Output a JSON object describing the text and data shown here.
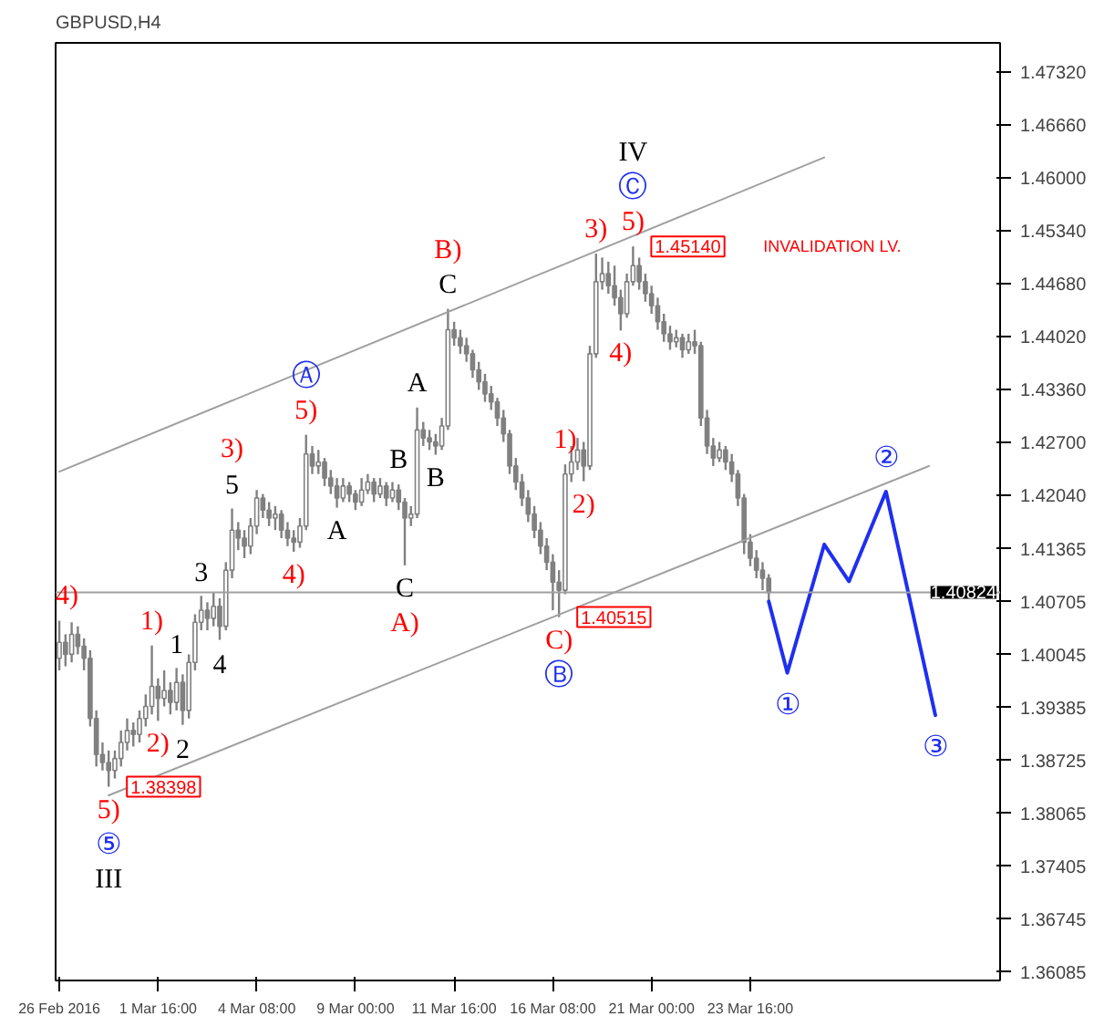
{
  "chart_data": {
    "type": "candlestick",
    "title": "GBPUSD,H4",
    "color": "#808080",
    "categories": [
      "26 Feb 2016",
      null,
      null,
      null,
      null,
      null,
      null,
      null,
      null,
      null,
      null,
      null,
      null,
      null,
      null,
      null,
      "1 Mar 16:00",
      null,
      null,
      null,
      null,
      null,
      null,
      null,
      null,
      null,
      null,
      null,
      null,
      null,
      null,
      null,
      "4 Mar 08:00",
      null,
      null,
      null,
      null,
      null,
      null,
      null,
      null,
      null,
      null,
      null,
      null,
      null,
      null,
      null,
      "9 Mar 00:00",
      null,
      null,
      null,
      null,
      null,
      null,
      null,
      null,
      null,
      null,
      null,
      null,
      null,
      null,
      null,
      "11 Mar 16:00",
      null,
      null,
      null,
      null,
      null,
      null,
      null,
      null,
      null,
      null,
      null,
      null,
      null,
      null,
      null,
      "16 Mar 08:00",
      null,
      null,
      null,
      null,
      null,
      null,
      null,
      null,
      null,
      null,
      null,
      null,
      null,
      null,
      null,
      "21 Mar 00:00",
      null,
      null,
      null,
      null,
      null,
      null,
      null,
      null,
      null,
      null,
      null,
      null,
      null,
      null,
      null,
      "23 Mar 16:00",
      null,
      null,
      null,
      null,
      null,
      null,
      null,
      null,
      null,
      null,
      null,
      null,
      null,
      null,
      null,
      null,
      null,
      null,
      null,
      null,
      null,
      null,
      null,
      null,
      null,
      null,
      null,
      null,
      null,
      null,
      null,
      null,
      null,
      null,
      null,
      null,
      null,
      null,
      null,
      null
    ],
    "ohlc": [
      [
        1.4,
        1.4047,
        1.3985,
        1.402
      ],
      [
        1.402,
        1.403,
        1.399,
        1.4005
      ],
      [
        1.4005,
        1.4045,
        1.3995,
        1.403
      ],
      [
        1.403,
        1.404,
        1.4005,
        1.4015
      ],
      [
        1.4015,
        1.4025,
        1.3985,
        1.4
      ],
      [
        1.4,
        1.401,
        1.3915,
        1.3925
      ],
      [
        1.3925,
        1.3935,
        1.3865,
        1.388
      ],
      [
        1.388,
        1.3895,
        1.386,
        1.387
      ],
      [
        1.387,
        1.3885,
        1.38398,
        1.386
      ],
      [
        1.386,
        1.3885,
        1.385,
        1.3875
      ],
      [
        1.3875,
        1.391,
        1.3865,
        1.3895
      ],
      [
        1.3895,
        1.3925,
        1.3885,
        1.391
      ],
      [
        1.391,
        1.392,
        1.389,
        1.3905
      ],
      [
        1.3905,
        1.3935,
        1.3895,
        1.3925
      ],
      [
        1.3925,
        1.3955,
        1.3915,
        1.394
      ],
      [
        1.394,
        1.4016,
        1.393,
        1.3965
      ],
      [
        1.3965,
        1.3975,
        1.3922,
        1.395
      ],
      [
        1.395,
        1.3985,
        1.394,
        1.396
      ],
      [
        1.396,
        1.397,
        1.393,
        1.3945
      ],
      [
        1.3945,
        1.3988,
        1.3935,
        1.397
      ],
      [
        1.397,
        1.398,
        1.3917,
        1.3935
      ],
      [
        1.3935,
        1.4005,
        1.3925,
        1.3995
      ],
      [
        1.3995,
        1.4055,
        1.3985,
        1.4045
      ],
      [
        1.4045,
        1.4078,
        1.4035,
        1.406
      ],
      [
        1.406,
        1.407,
        1.4035,
        1.405
      ],
      [
        1.405,
        1.4082,
        1.404,
        1.4065
      ],
      [
        1.4065,
        1.4075,
        1.4023,
        1.404
      ],
      [
        1.404,
        1.412,
        1.4035,
        1.411
      ],
      [
        1.411,
        1.4187,
        1.41,
        1.416
      ],
      [
        1.416,
        1.417,
        1.4135,
        1.415
      ],
      [
        1.415,
        1.416,
        1.4125,
        1.414
      ],
      [
        1.414,
        1.4175,
        1.413,
        1.4165
      ],
      [
        1.4165,
        1.421,
        1.4155,
        1.42
      ],
      [
        1.42,
        1.4205,
        1.4175,
        1.4185
      ],
      [
        1.4185,
        1.4195,
        1.4165,
        1.4175
      ],
      [
        1.4175,
        1.419,
        1.416,
        1.418
      ],
      [
        1.418,
        1.4185,
        1.415,
        1.416
      ],
      [
        1.416,
        1.417,
        1.414,
        1.415
      ],
      [
        1.415,
        1.416,
        1.4133,
        1.4145
      ],
      [
        1.4145,
        1.4175,
        1.4138,
        1.4165
      ],
      [
        1.4165,
        1.4279,
        1.416,
        1.4255
      ],
      [
        1.4255,
        1.4265,
        1.423,
        1.424
      ],
      [
        1.424,
        1.426,
        1.423,
        1.4245
      ],
      [
        1.4245,
        1.425,
        1.4215,
        1.4225
      ],
      [
        1.4225,
        1.4235,
        1.4205,
        1.4215
      ],
      [
        1.4215,
        1.4225,
        1.4188,
        1.42
      ],
      [
        1.42,
        1.4225,
        1.4195,
        1.4215
      ],
      [
        1.4215,
        1.422,
        1.4195,
        1.4205
      ],
      [
        1.4205,
        1.421,
        1.4185,
        1.4195
      ],
      [
        1.4195,
        1.4225,
        1.419,
        1.421
      ],
      [
        1.421,
        1.423,
        1.4205,
        1.422
      ],
      [
        1.422,
        1.4225,
        1.4195,
        1.4205
      ],
      [
        1.4205,
        1.4225,
        1.42,
        1.4215
      ],
      [
        1.4215,
        1.422,
        1.419,
        1.42
      ],
      [
        1.42,
        1.422,
        1.4195,
        1.421
      ],
      [
        1.421,
        1.4217,
        1.4185,
        1.4195
      ],
      [
        1.4195,
        1.42,
        1.4116,
        1.4175
      ],
      [
        1.4175,
        1.419,
        1.4165,
        1.418
      ],
      [
        1.418,
        1.4313,
        1.4175,
        1.4285
      ],
      [
        1.4285,
        1.4295,
        1.4265,
        1.4275
      ],
      [
        1.4275,
        1.4285,
        1.426,
        1.427
      ],
      [
        1.427,
        1.428,
        1.4254,
        1.4265
      ],
      [
        1.4265,
        1.43,
        1.426,
        1.429
      ],
      [
        1.429,
        1.4436,
        1.4285,
        1.441
      ],
      [
        1.441,
        1.442,
        1.439,
        1.44
      ],
      [
        1.44,
        1.441,
        1.438,
        1.439
      ],
      [
        1.439,
        1.44,
        1.437,
        1.438
      ],
      [
        1.438,
        1.4385,
        1.435,
        1.436
      ],
      [
        1.436,
        1.437,
        1.4335,
        1.4345
      ],
      [
        1.4345,
        1.4355,
        1.432,
        1.433
      ],
      [
        1.433,
        1.434,
        1.431,
        1.432
      ],
      [
        1.432,
        1.4325,
        1.429,
        1.43
      ],
      [
        1.43,
        1.431,
        1.427,
        1.428
      ],
      [
        1.428,
        1.4285,
        1.423,
        1.424
      ],
      [
        1.424,
        1.425,
        1.421,
        1.422
      ],
      [
        1.422,
        1.423,
        1.419,
        1.42
      ],
      [
        1.42,
        1.421,
        1.417,
        1.418
      ],
      [
        1.418,
        1.419,
        1.415,
        1.416
      ],
      [
        1.416,
        1.417,
        1.413,
        1.414
      ],
      [
        1.414,
        1.415,
        1.411,
        1.412
      ],
      [
        1.412,
        1.413,
        1.406,
        1.4095
      ],
      [
        1.4095,
        1.411,
        1.40515,
        1.4085
      ],
      [
        1.4085,
        1.4242,
        1.408,
        1.423
      ],
      [
        1.423,
        1.4265,
        1.422,
        1.4245
      ],
      [
        1.4245,
        1.4275,
        1.4235,
        1.426
      ],
      [
        1.426,
        1.427,
        1.4221,
        1.424
      ],
      [
        1.424,
        1.439,
        1.4235,
        1.438
      ],
      [
        1.438,
        1.4505,
        1.4375,
        1.447
      ],
      [
        1.447,
        1.45,
        1.446,
        1.448
      ],
      [
        1.448,
        1.4495,
        1.4455,
        1.4465
      ],
      [
        1.4465,
        1.449,
        1.444,
        1.445
      ],
      [
        1.445,
        1.446,
        1.4409,
        1.443
      ],
      [
        1.443,
        1.448,
        1.4425,
        1.447
      ],
      [
        1.447,
        1.4514,
        1.4465,
        1.449
      ],
      [
        1.449,
        1.45,
        1.446,
        1.447
      ],
      [
        1.447,
        1.448,
        1.4445,
        1.4455
      ],
      [
        1.4455,
        1.4465,
        1.443,
        1.444
      ],
      [
        1.444,
        1.445,
        1.441,
        1.442
      ],
      [
        1.442,
        1.443,
        1.4395,
        1.4405
      ],
      [
        1.4405,
        1.4415,
        1.4385,
        1.4395
      ],
      [
        1.4395,
        1.441,
        1.4388,
        1.44
      ],
      [
        1.44,
        1.4405,
        1.4375,
        1.4385
      ],
      [
        1.4385,
        1.4405,
        1.438,
        1.4395
      ],
      [
        1.4395,
        1.441,
        1.438,
        1.439
      ],
      [
        1.439,
        1.4395,
        1.429,
        1.43
      ],
      [
        1.43,
        1.431,
        1.4255,
        1.4265
      ],
      [
        1.4265,
        1.4275,
        1.424,
        1.425
      ],
      [
        1.425,
        1.427,
        1.4245,
        1.426
      ],
      [
        1.426,
        1.4265,
        1.4235,
        1.4245
      ],
      [
        1.4245,
        1.4255,
        1.422,
        1.423
      ],
      [
        1.423,
        1.4235,
        1.419,
        1.42
      ],
      [
        1.42,
        1.4205,
        1.413,
        1.4145
      ],
      [
        1.4145,
        1.4155,
        1.4115,
        1.4125
      ],
      [
        1.4125,
        1.4135,
        1.41,
        1.411
      ],
      [
        1.411,
        1.412,
        1.4085,
        1.41
      ],
      [
        1.41,
        1.4105,
        1.407,
        1.4082
      ],
      null,
      null,
      null,
      null,
      null,
      null,
      null,
      null,
      null,
      null,
      null,
      null,
      null,
      null,
      null,
      null,
      null,
      null,
      null,
      null,
      null,
      null,
      null,
      null,
      null,
      null,
      null,
      null,
      null,
      null,
      null,
      null,
      null,
      null,
      null,
      null,
      null
    ],
    "series": [
      {
        "type": "line",
        "color": "#a0a0a0",
        "values": [
          1.4233,
          null,
          null,
          null,
          null,
          null,
          null,
          null,
          null,
          null,
          null,
          null,
          null,
          null,
          null,
          null,
          null,
          null,
          null,
          null,
          null,
          null,
          null,
          null,
          null,
          null,
          null,
          null,
          null,
          null,
          null,
          null,
          null,
          null,
          null,
          null,
          null,
          null,
          null,
          null,
          null,
          null,
          null,
          null,
          null,
          null,
          null,
          null,
          null,
          null,
          null,
          null,
          null,
          null,
          null,
          null,
          null,
          null,
          null,
          null,
          null,
          null,
          null,
          null,
          null,
          null,
          null,
          null,
          null,
          null,
          null,
          null,
          null,
          null,
          null,
          null,
          null,
          null,
          null,
          null,
          null,
          null,
          null,
          null,
          null,
          null,
          null,
          null,
          null,
          null,
          null,
          null,
          null,
          null,
          null,
          null,
          null,
          null,
          null,
          null,
          null,
          null,
          null,
          null,
          null,
          null,
          null,
          null,
          null,
          null,
          null,
          null,
          null,
          null,
          null,
          null,
          null,
          null,
          null,
          null,
          null,
          null,
          null,
          null,
          1.4625,
          null,
          null,
          null,
          null,
          null,
          null,
          null,
          null,
          null,
          null,
          null,
          null,
          null,
          null,
          null,
          null,
          null,
          null,
          null,
          null,
          null,
          null,
          null,
          null,
          null,
          null,
          null,
          null
        ]
      },
      {
        "type": "line",
        "color": "#a0a0a0",
        "values": [
          null,
          null,
          null,
          null,
          null,
          null,
          null,
          null,
          1.3829,
          null,
          null,
          null,
          null,
          null,
          null,
          null,
          null,
          null,
          null,
          null,
          null,
          null,
          null,
          null,
          null,
          null,
          null,
          null,
          null,
          null,
          null,
          null,
          null,
          null,
          null,
          null,
          null,
          null,
          null,
          null,
          null,
          null,
          null,
          null,
          null,
          null,
          null,
          null,
          null,
          null,
          null,
          null,
          null,
          null,
          null,
          null,
          null,
          null,
          null,
          null,
          null,
          null,
          null,
          null,
          null,
          null,
          null,
          null,
          null,
          null,
          null,
          null,
          null,
          null,
          null,
          null,
          null,
          null,
          null,
          null,
          null,
          null,
          null,
          null,
          null,
          null,
          null,
          null,
          null,
          null,
          null,
          null,
          null,
          null,
          null,
          null,
          null,
          null,
          null,
          null,
          null,
          null,
          null,
          null,
          null,
          null,
          null,
          null,
          null,
          null,
          null,
          null,
          null,
          null,
          null,
          null,
          null,
          null,
          null,
          null,
          null,
          null,
          null,
          null,
          null,
          null,
          null,
          null,
          null,
          null,
          null,
          null,
          null,
          null,
          null,
          null,
          null,
          null,
          null,
          null,
          null,
          1.424,
          null,
          null,
          null,
          null,
          null,
          null,
          null,
          null,
          null,
          null,
          null
        ]
      },
      {
        "type": "line",
        "color": "#1f2ff0",
        "values": [
          null,
          null,
          null,
          null,
          null,
          null,
          null,
          null,
          null,
          null,
          null,
          null,
          null,
          null,
          null,
          null,
          null,
          null,
          null,
          null,
          null,
          null,
          null,
          null,
          null,
          null,
          null,
          null,
          null,
          null,
          null,
          null,
          null,
          null,
          null,
          null,
          null,
          null,
          null,
          null,
          null,
          null,
          null,
          null,
          null,
          null,
          null,
          null,
          null,
          null,
          null,
          null,
          null,
          null,
          null,
          null,
          null,
          null,
          null,
          null,
          null,
          null,
          null,
          null,
          null,
          null,
          null,
          null,
          null,
          null,
          null,
          null,
          null,
          null,
          null,
          null,
          null,
          null,
          null,
          null,
          null,
          null,
          null,
          null,
          null,
          null,
          null,
          null,
          null,
          null,
          null,
          null,
          null,
          null,
          null,
          null,
          null,
          null,
          null,
          null,
          null,
          null,
          null,
          null,
          null,
          null,
          null,
          null,
          null,
          null,
          null,
          null,
          null,
          null,
          null,
          1.4071,
          null,
          null,
          1.3982,
          null,
          null,
          null,
          null,
          null,
          1.4142,
          null,
          null,
          null,
          1.4096,
          null,
          null,
          null,
          null,
          null,
          1.4208,
          null,
          null,
          null,
          null,
          null,
          null,
          null,
          1.3929,
          null,
          null,
          null,
          null,
          null,
          null,
          null,
          null,
          null,
          null
        ]
      }
    ],
    "ylim": [
      1.3598,
      1.4768
    ],
    "yticks": [
      {
        "value": 1.4732,
        "label": "1.47320"
      },
      {
        "value": 1.4666,
        "label": "1.46660"
      },
      {
        "value": 1.46,
        "label": "1.46000"
      },
      {
        "value": 1.4534,
        "label": "1.45340"
      },
      {
        "value": 1.4468,
        "label": "1.44680"
      },
      {
        "value": 1.4402,
        "label": "1.44020"
      },
      {
        "value": 1.4336,
        "label": "1.43360"
      },
      {
        "value": 1.427,
        "label": "1.42700"
      },
      {
        "value": 1.4204,
        "label": "1.42040"
      },
      {
        "value": 1.41365,
        "label": "1.41365"
      },
      {
        "value": 1.40705,
        "label": "1.40705"
      },
      {
        "value": 1.40045,
        "label": "1.40045"
      },
      {
        "value": 1.39385,
        "label": "1.39385"
      },
      {
        "value": 1.38725,
        "label": "1.38725"
      },
      {
        "value": 1.38065,
        "label": "1.38065"
      },
      {
        "value": 1.37405,
        "label": "1.37405"
      },
      {
        "value": 1.36745,
        "label": "1.36745"
      },
      {
        "value": 1.36085,
        "label": "1.36085"
      }
    ],
    "ref_lines": [
      {
        "axis": "y",
        "value": 1.40824,
        "label": "1.40824",
        "color": "#a0a0a0"
      }
    ],
    "annotations": [
      {
        "text": "4)",
        "y": 1.4047
      },
      {
        "text": "1)",
        "y": 1.4016
      },
      {
        "text": "1",
        "y": 1.3988
      },
      {
        "text": "2)",
        "y": 1.3922
      },
      {
        "text": "2",
        "y": 1.3917
      },
      {
        "text": "5)",
        "y": 1.38398
      },
      {
        "text": "⑤",
        "y": 1.38398
      },
      {
        "text": "III",
        "y": 1.38398
      },
      "1.38398",
      {
        "text": "3",
        "y": 1.4078
      },
      {
        "text": "4",
        "y": 1.4023
      },
      {
        "text": "5",
        "y": 1.4187
      },
      {
        "text": "3)",
        "y": 1.4187
      },
      {
        "text": "4)",
        "y": 1.4133
      },
      {
        "text": "5)",
        "y": 1.4279
      },
      {
        "text": "Ⓐ",
        "y": 1.4279
      },
      {
        "text": "A",
        "y": 1.4188
      },
      {
        "text": "B",
        "y": 1.4217
      },
      {
        "text": "C",
        "y": 1.4116
      },
      {
        "text": "A)",
        "y": 1.4116
      },
      {
        "text": "A",
        "y": 1.4313
      },
      {
        "text": "B",
        "y": 1.4254
      },
      {
        "text": "C",
        "y": 1.4436
      },
      {
        "text": "B)",
        "y": 1.4436
      },
      {
        "text": "C)",
        "y": 1.40515
      },
      {
        "text": "Ⓑ",
        "y": 1.40515
      },
      "1.40515",
      {
        "text": "1)",
        "y": 1.4242
      },
      {
        "text": "2)",
        "y": 1.4221
      },
      {
        "text": "3)",
        "y": 1.4505
      },
      {
        "text": "4)",
        "y": 1.4409
      },
      {
        "text": "5)",
        "y": 1.4514
      },
      {
        "text": "Ⓒ",
        "y": 1.4514
      },
      {
        "text": "IV",
        "y": 1.4514
      },
      "1.45140",
      "INVALIDATION LV.",
      {
        "text": "①",
        "y": 1.3982
      },
      {
        "text": "②",
        "y": 1.4208
      },
      {
        "text": "③",
        "y": 1.3929
      }
    ]
  }
}
